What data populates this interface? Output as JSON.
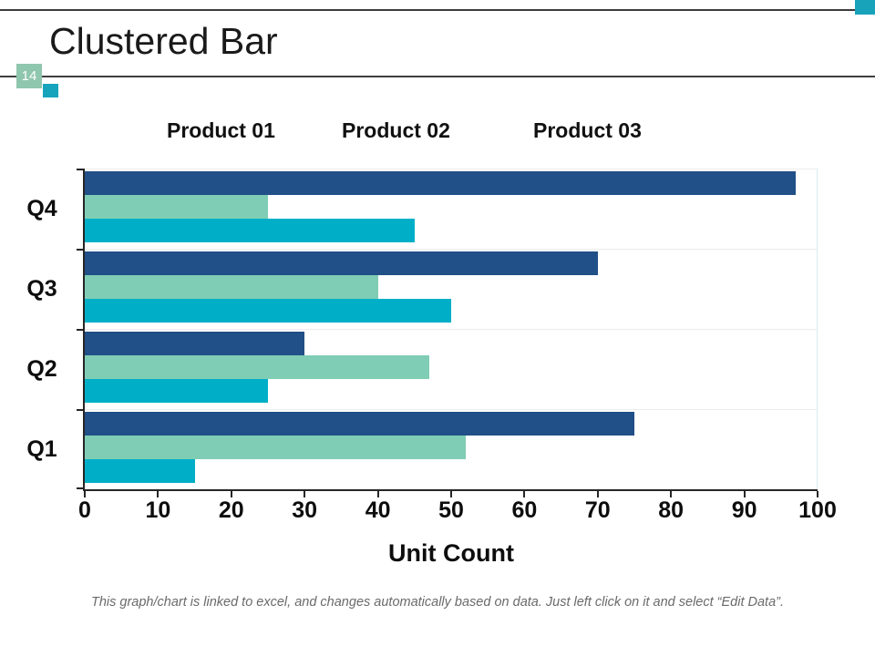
{
  "slide": {
    "title": "Clustered Bar",
    "page_number": "14",
    "footer_note": "This graph/chart is linked to excel, and changes automatically based on data.  Just left click on it and select “Edit Data”."
  },
  "chart_data": {
    "type": "bar",
    "orientation": "horizontal",
    "title": "",
    "categories": [
      "Q1",
      "Q2",
      "Q3",
      "Q4"
    ],
    "series": [
      {
        "name": "Product 01",
        "color": "#00afc7",
        "values": [
          15,
          25,
          50,
          45
        ]
      },
      {
        "name": "Product 02",
        "color": "#7fcdb4",
        "values": [
          52,
          47,
          40,
          25
        ]
      },
      {
        "name": "Product 03",
        "color": "#214f87",
        "values": [
          75,
          30,
          70,
          97
        ]
      }
    ],
    "xlabel": "Unit Count",
    "ylabel": "",
    "xlim": [
      0,
      100
    ],
    "xticks": [
      0,
      10,
      20,
      30,
      40,
      50,
      60,
      70,
      80,
      90,
      100
    ],
    "legend_position": "top",
    "category_order_on_screen": [
      "Q4",
      "Q3",
      "Q2",
      "Q1"
    ],
    "series_order_within_group_top_to_bottom": [
      "Product 03",
      "Product 02",
      "Product 01"
    ],
    "grid": "faint horizontal lines at category boundaries, faint vertical line at x=100"
  },
  "colors": {
    "accent_teal": "#18a3ba",
    "accent_green": "#8fc6ae",
    "line_dark": "#3c3c3c",
    "axis": "#262626",
    "footer_text": "#6a6a6a"
  }
}
